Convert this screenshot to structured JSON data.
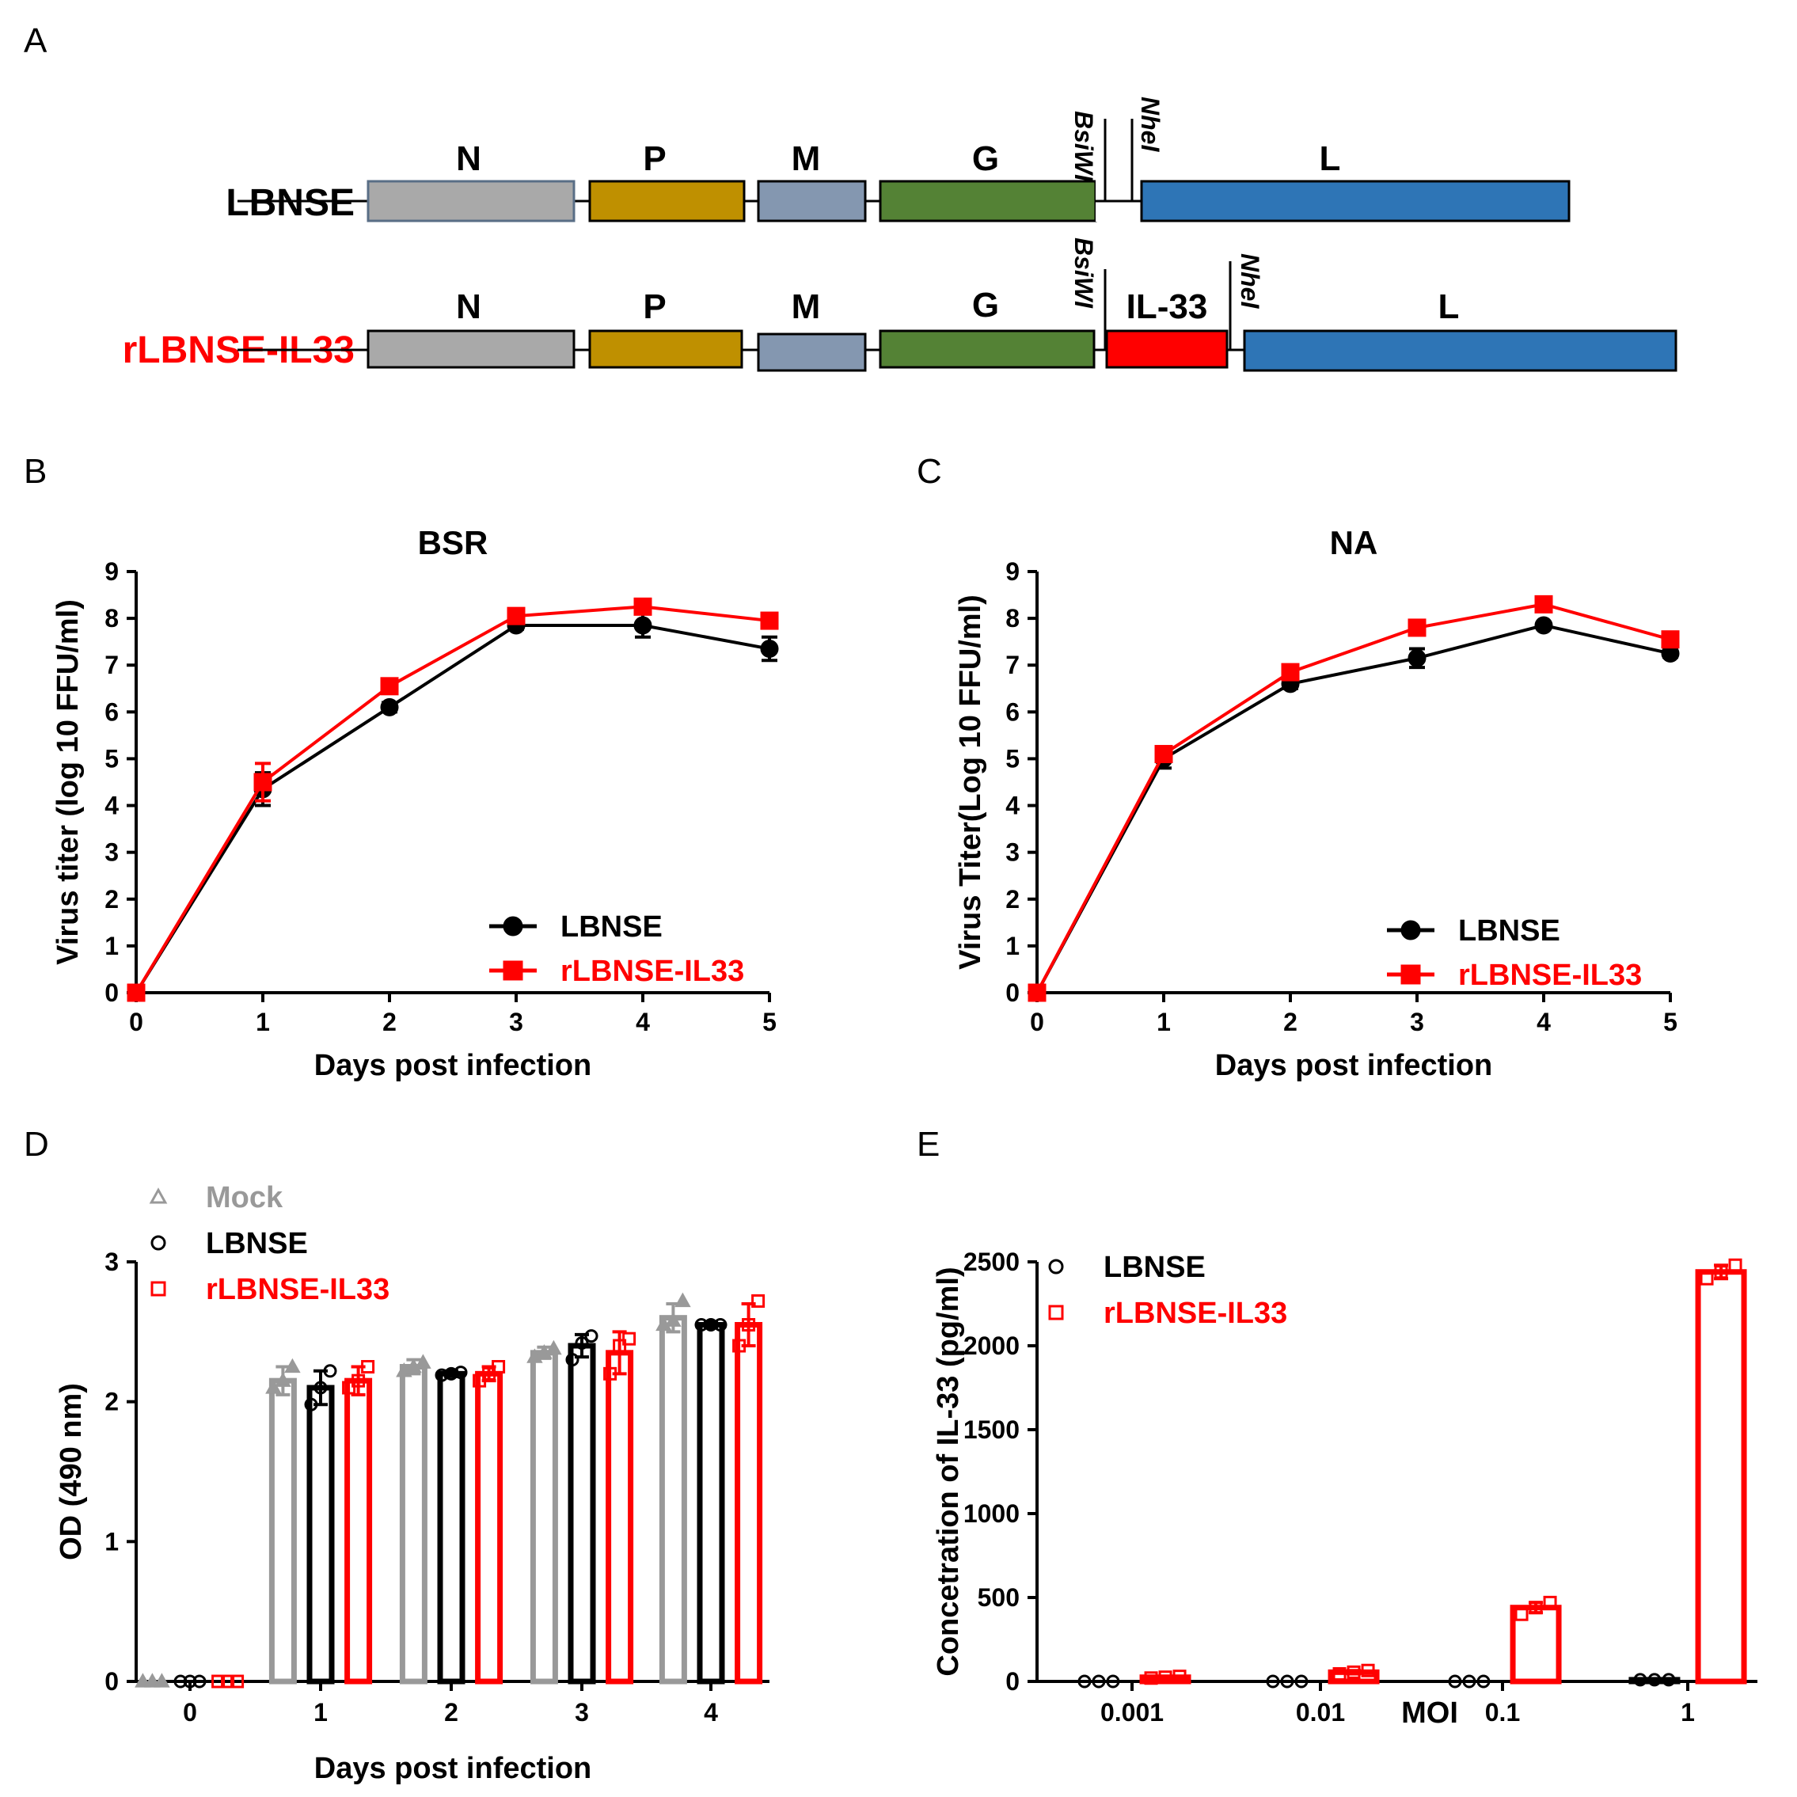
{
  "panel_labels": [
    "A",
    "B",
    "C",
    "D",
    "E"
  ],
  "diagram": {
    "rows": [
      {
        "name": "LBNSE",
        "name_color": "#222222",
        "genes": [
          {
            "label": "N",
            "color": "#a9a9a9"
          },
          {
            "label": "P",
            "color": "#bf9000"
          },
          {
            "label": "M",
            "color": "#8497b0"
          },
          {
            "label": "G",
            "color": "#548235"
          },
          {
            "label": "L",
            "color": "#2e75b6"
          }
        ],
        "sites": [
          "BsiWI",
          "NheI"
        ]
      },
      {
        "name": "rLBNSE-IL33",
        "name_color": "#ff0000",
        "genes": [
          {
            "label": "N",
            "color": "#a9a9a9"
          },
          {
            "label": "P",
            "color": "#bf9000"
          },
          {
            "label": "M",
            "color": "#8497b0"
          },
          {
            "label": "G",
            "color": "#548235"
          },
          {
            "label": "IL-33",
            "color": "#ff0000"
          },
          {
            "label": "L",
            "color": "#2e75b6"
          }
        ],
        "sites": [
          "BsiWI",
          "NheI"
        ]
      }
    ]
  },
  "chart_data": [
    {
      "panel": "B",
      "type": "line",
      "title": "BSR",
      "xlabel": "Days post infection",
      "ylabel": "Virus titer (log 10 FFU/ml)",
      "x": [
        0,
        1,
        2,
        3,
        4,
        5
      ],
      "xlim": [
        0,
        5
      ],
      "ylim": [
        0,
        9
      ],
      "yticks": [
        0,
        1,
        2,
        3,
        4,
        5,
        6,
        7,
        8,
        9
      ],
      "series": [
        {
          "name": "LBNSE",
          "color": "#000000",
          "marker": "circle",
          "values": [
            0,
            4.35,
            6.1,
            7.85,
            7.85,
            7.35
          ],
          "errors": [
            0,
            0.35,
            0.1,
            0.08,
            0.25,
            0.25
          ]
        },
        {
          "name": "rLBNSE-IL33",
          "color": "#ff0000",
          "marker": "square",
          "values": [
            0,
            4.5,
            6.55,
            8.05,
            8.25,
            7.95
          ],
          "errors": [
            0,
            0.4,
            0.15,
            0.08,
            0.15,
            0.1
          ]
        }
      ],
      "legend": "bottom-right"
    },
    {
      "panel": "C",
      "type": "line",
      "title": "NA",
      "xlabel": "Days post infection",
      "ylabel": "Virus Titer(Log 10 FFU/ml)",
      "x": [
        0,
        1,
        2,
        3,
        4,
        5
      ],
      "xlim": [
        0,
        5
      ],
      "ylim": [
        0,
        9
      ],
      "yticks": [
        0,
        1,
        2,
        3,
        4,
        5,
        6,
        7,
        8,
        9
      ],
      "series": [
        {
          "name": "LBNSE",
          "color": "#000000",
          "marker": "circle",
          "values": [
            0,
            5.0,
            6.6,
            7.15,
            7.85,
            7.25
          ],
          "errors": [
            0,
            0.2,
            0.1,
            0.2,
            0.05,
            0.08
          ]
        },
        {
          "name": "rLBNSE-IL33",
          "color": "#ff0000",
          "marker": "square",
          "values": [
            0,
            5.1,
            6.85,
            7.8,
            8.3,
            7.55
          ],
          "errors": [
            0,
            0.15,
            0.12,
            0.15,
            0.12,
            0.1
          ]
        }
      ],
      "legend": "bottom-right"
    },
    {
      "panel": "D",
      "type": "bar",
      "title": "",
      "xlabel": "Days post infection",
      "ylabel": "OD (490 nm)",
      "categories": [
        "0",
        "1",
        "2",
        "3",
        "4"
      ],
      "ylim": [
        0,
        3
      ],
      "yticks": [
        0,
        1,
        2,
        3
      ],
      "series": [
        {
          "name": "Mock",
          "color": "#999999",
          "marker": "triangle",
          "values": [
            0.0,
            2.15,
            2.25,
            2.35,
            2.6
          ],
          "errors": [
            0.0,
            0.1,
            0.05,
            0.04,
            0.1
          ],
          "points": [
            [
              0,
              0,
              0
            ],
            [
              2.1,
              2.15,
              2.25
            ],
            [
              2.22,
              2.25,
              2.28
            ],
            [
              2.32,
              2.35,
              2.38
            ],
            [
              2.55,
              2.58,
              2.72
            ]
          ]
        },
        {
          "name": "LBNSE",
          "color": "#000000",
          "marker": "circle",
          "values": [
            0.0,
            2.1,
            2.2,
            2.4,
            2.55
          ],
          "errors": [
            0.0,
            0.12,
            0.02,
            0.08,
            0.02
          ],
          "points": [
            [
              0,
              0,
              0
            ],
            [
              1.98,
              2.1,
              2.22
            ],
            [
              2.19,
              2.2,
              2.21
            ],
            [
              2.3,
              2.42,
              2.47
            ],
            [
              2.55,
              2.55,
              2.55
            ]
          ]
        },
        {
          "name": "rLBNSE-IL33",
          "color": "#ff0000",
          "marker": "square",
          "values": [
            0.0,
            2.15,
            2.2,
            2.35,
            2.55
          ],
          "errors": [
            0.0,
            0.1,
            0.05,
            0.15,
            0.15
          ],
          "points": [
            [
              0,
              0,
              0
            ],
            [
              2.1,
              2.15,
              2.25
            ],
            [
              2.15,
              2.2,
              2.25
            ],
            [
              2.2,
              2.4,
              2.45
            ],
            [
              2.4,
              2.55,
              2.72
            ]
          ]
        }
      ],
      "legend": "top-left"
    },
    {
      "panel": "E",
      "type": "bar",
      "title": "",
      "xlabel": "MOI",
      "ylabel": "Concetration of IL-33 (pg/ml)",
      "categories": [
        "0.001",
        "0.01",
        "0.1",
        "1"
      ],
      "ylim": [
        0,
        2500
      ],
      "yticks": [
        0,
        500,
        1000,
        1500,
        2000,
        2500
      ],
      "series": [
        {
          "name": "LBNSE",
          "color": "#000000",
          "marker": "circle",
          "values": [
            0,
            0,
            0,
            10
          ],
          "errors": [
            0,
            0,
            0,
            0
          ],
          "points": [
            [
              0,
              0,
              0
            ],
            [
              0,
              0,
              0
            ],
            [
              0,
              0,
              0
            ],
            [
              10,
              10,
              10
            ]
          ]
        },
        {
          "name": "rLBNSE-IL33",
          "color": "#ff0000",
          "marker": "square",
          "values": [
            25,
            55,
            440,
            2440
          ],
          "errors": [
            5,
            10,
            30,
            40
          ],
          "points": [
            [
              20,
              25,
              30
            ],
            [
              45,
              55,
              65
            ],
            [
              400,
              440,
              470
            ],
            [
              2400,
              2440,
              2480
            ]
          ]
        }
      ],
      "legend": "top-left"
    }
  ]
}
